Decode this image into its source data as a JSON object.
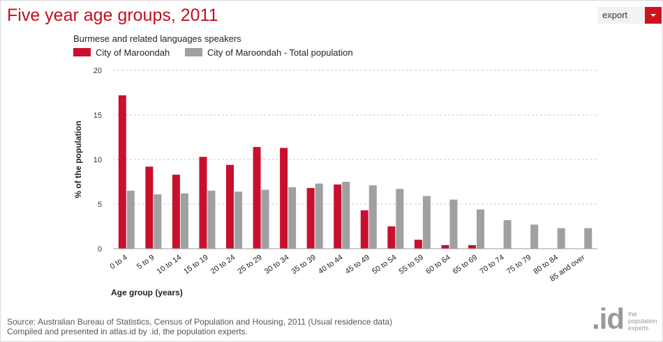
{
  "header": {
    "title": "Five year age groups, 2011",
    "export_label": "export"
  },
  "colors": {
    "series_1": "#c8102e",
    "series_2": "#a0a0a0",
    "accent": "#d0111f"
  },
  "chart_data": {
    "type": "bar",
    "subtitle": "Burmese and related languages speakers",
    "xlabel": "Age group (years)",
    "ylabel": "% of the population",
    "ylim": [
      0,
      20
    ],
    "yticks": [
      0,
      5,
      10,
      15,
      20
    ],
    "grid": true,
    "legend_position": "top-left",
    "categories": [
      "0 to 4",
      "5 to 9",
      "10 to 14",
      "15 to 19",
      "20 to 24",
      "25 to 29",
      "30 to 34",
      "35 to 39",
      "40 to 44",
      "45 to 49",
      "50 to 54",
      "55 to 59",
      "60 to 64",
      "65 to 69",
      "70 to 74",
      "75 to 79",
      "80 to 84",
      "85 and over"
    ],
    "series": [
      {
        "name": "City of Maroondah",
        "values": [
          17.2,
          9.2,
          8.3,
          10.3,
          9.4,
          11.4,
          11.3,
          6.8,
          7.2,
          4.3,
          2.5,
          1.0,
          0.4,
          0.4,
          0,
          0,
          0,
          0
        ]
      },
      {
        "name": "City of Maroondah - Total population",
        "values": [
          6.5,
          6.1,
          6.2,
          6.5,
          6.4,
          6.6,
          6.9,
          7.3,
          7.5,
          7.1,
          6.7,
          5.9,
          5.5,
          4.4,
          3.2,
          2.7,
          2.3,
          2.3
        ]
      }
    ]
  },
  "footer": {
    "source_line1": "Source: Australian Bureau of Statistics, Census of Population and Housing, 2011 (Usual residence data)",
    "source_line2": "Compiled and presented in atlas.id by .id, the population experts."
  },
  "logo": {
    "mark": ".id",
    "line1": "the",
    "line2": "population",
    "line3": "experts"
  }
}
